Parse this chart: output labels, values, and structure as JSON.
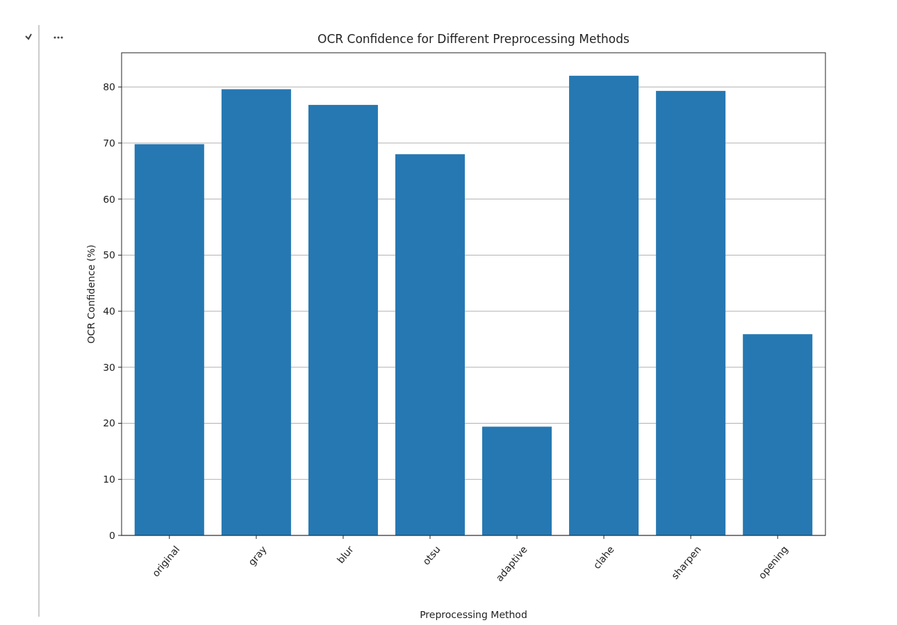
{
  "chart_data": {
    "type": "bar",
    "title": "OCR Confidence for Different Preprocessing Methods",
    "xlabel": "Preprocessing Method",
    "ylabel": "OCR Confidence (%)",
    "categories": [
      "original",
      "gray",
      "blur",
      "otsu",
      "adaptive",
      "clahe",
      "sharpen",
      "opening"
    ],
    "values": [
      69.8,
      79.6,
      76.8,
      68.0,
      19.4,
      82.0,
      79.3,
      35.9
    ],
    "color": "#2678b2",
    "ylim": [
      0,
      86.1
    ],
    "yticks": [
      0,
      10,
      20,
      30,
      40,
      50,
      60,
      70,
      80
    ],
    "grid": "y"
  }
}
